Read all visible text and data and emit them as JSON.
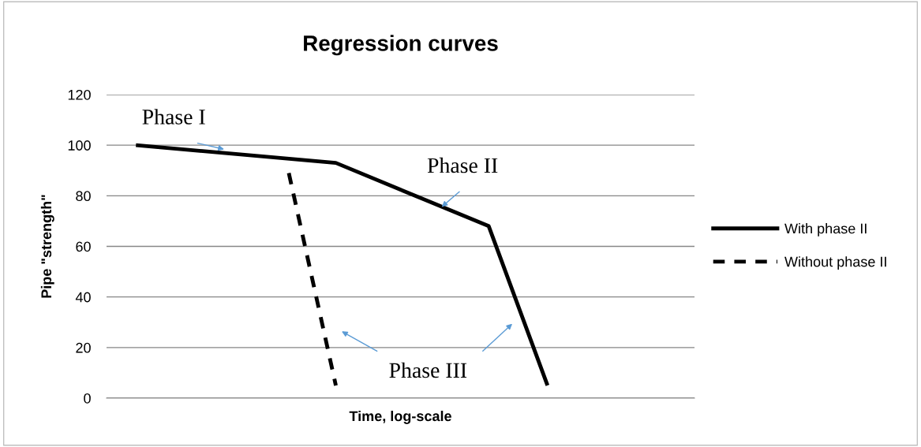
{
  "chart_data": {
    "type": "line",
    "title": "Regression curves",
    "xlabel": "Time, log-scale",
    "ylabel": "Pipe \"strength\"",
    "categories": [
      null,
      null,
      null,
      null,
      null,
      null,
      null,
      null,
      null,
      null,
      null,
      null,
      null,
      null,
      null,
      null,
      null,
      null,
      null,
      null,
      null,
      null,
      null,
      null,
      null,
      null,
      null,
      null,
      null,
      null,
      null,
      null,
      null,
      null,
      null,
      null,
      null,
      null,
      null,
      null,
      null,
      null,
      null,
      null,
      null,
      null,
      null,
      null,
      null,
      null
    ],
    "ylim": [
      0,
      120
    ],
    "yticks": [
      0,
      20,
      40,
      60,
      80,
      100,
      120
    ],
    "grid": "y",
    "legend": "right",
    "marker": "none",
    "series": [
      {
        "name": "With phase II",
        "color": "#000000",
        "line_style": "solid",
        "values": [
          null,
          null,
          100,
          null,
          null,
          null,
          null,
          null,
          null,
          null,
          null,
          null,
          null,
          null,
          null,
          null,
          null,
          null,
          null,
          93,
          null,
          null,
          null,
          null,
          null,
          null,
          null,
          null,
          null,
          null,
          null,
          null,
          68,
          null,
          null,
          null,
          null,
          5,
          null,
          null,
          null,
          null,
          null,
          null,
          null,
          null,
          null,
          null,
          null,
          null
        ]
      },
      {
        "name": "Without phase II",
        "color": "#000000",
        "line_style": "dashed",
        "values": [
          null,
          null,
          null,
          null,
          null,
          null,
          null,
          null,
          null,
          null,
          null,
          null,
          null,
          null,
          null,
          89,
          null,
          null,
          null,
          5,
          null,
          null,
          null,
          null,
          null,
          null,
          null,
          null,
          null,
          null,
          null,
          null,
          null,
          null,
          null,
          null,
          null,
          null,
          null,
          null,
          null,
          null,
          null,
          null,
          null,
          null,
          null,
          null,
          null,
          null
        ]
      }
    ],
    "annotations": [
      "Phase I",
      "Phase II",
      "Phase III"
    ]
  }
}
